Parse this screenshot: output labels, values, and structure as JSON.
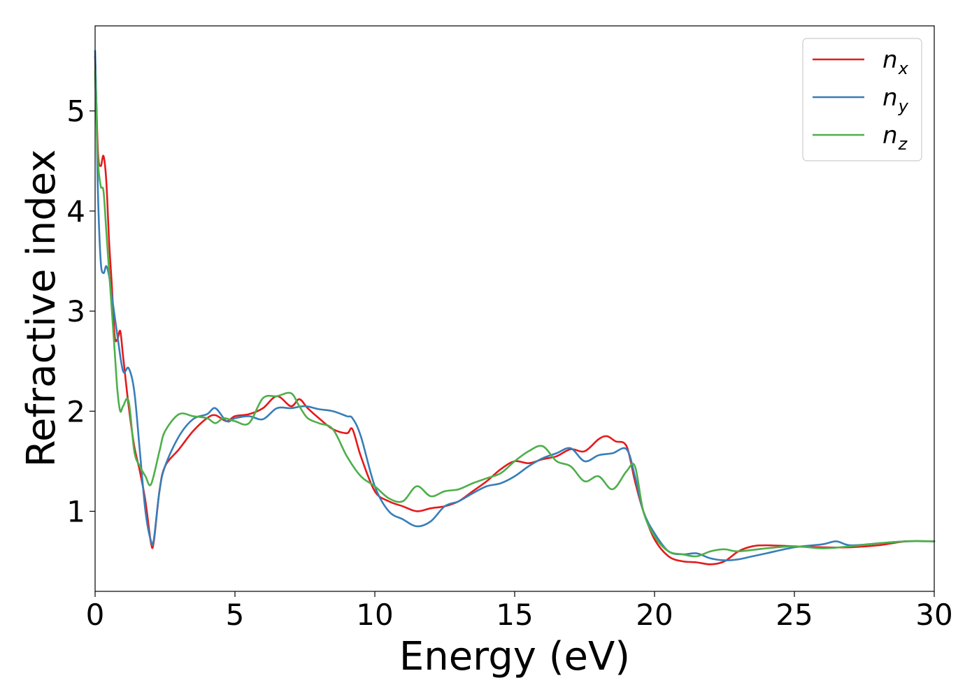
{
  "chart_data": {
    "type": "line",
    "title": "",
    "xlabel": "Energy (eV)",
    "ylabel": "Refractive index",
    "xlim": [
      0,
      30
    ],
    "ylim": [
      0.2,
      5.85
    ],
    "xticks": [
      0,
      5,
      10,
      15,
      20,
      25,
      30
    ],
    "yticks": [
      1,
      2,
      3,
      4,
      5
    ],
    "grid": false,
    "legend": {
      "placement": "top-right"
    },
    "series": [
      {
        "name": "n_x",
        "label_base": "n",
        "label_sub": "x",
        "color": "#e41a1c",
        "x": [
          0,
          0.1,
          0.2,
          0.3,
          0.4,
          0.5,
          0.6,
          0.7,
          0.8,
          0.9,
          1.0,
          1.2,
          1.4,
          1.6,
          1.8,
          2.0,
          2.1,
          2.3,
          2.5,
          3.0,
          3.5,
          4.0,
          4.3,
          4.7,
          5.0,
          5.5,
          6.0,
          6.5,
          7.0,
          7.3,
          7.6,
          8.0,
          8.5,
          9.0,
          9.2,
          9.5,
          10.0,
          10.5,
          11.0,
          11.5,
          12.0,
          12.5,
          13.0,
          13.5,
          14.0,
          14.5,
          15.0,
          15.5,
          16.0,
          16.5,
          17.0,
          17.5,
          18.0,
          18.3,
          18.6,
          19.0,
          19.3,
          19.6,
          20.0,
          20.5,
          21.0,
          21.5,
          22.0,
          22.5,
          23.0,
          23.5,
          24.0,
          25.0,
          26.0,
          27.0,
          28.0,
          29.0,
          30.0
        ],
        "y": [
          5.55,
          4.6,
          4.45,
          4.55,
          4.3,
          3.7,
          3.25,
          2.75,
          2.72,
          2.8,
          2.55,
          2.05,
          1.65,
          1.4,
          1.1,
          0.68,
          0.7,
          1.2,
          1.45,
          1.62,
          1.8,
          1.93,
          1.96,
          1.9,
          1.95,
          1.97,
          2.03,
          2.15,
          2.05,
          2.12,
          2.03,
          1.93,
          1.82,
          1.78,
          1.82,
          1.55,
          1.2,
          1.1,
          1.05,
          1.0,
          1.03,
          1.05,
          1.1,
          1.2,
          1.3,
          1.42,
          1.5,
          1.48,
          1.52,
          1.55,
          1.62,
          1.6,
          1.72,
          1.75,
          1.7,
          1.65,
          1.3,
          1.0,
          0.72,
          0.55,
          0.5,
          0.49,
          0.47,
          0.5,
          0.6,
          0.65,
          0.66,
          0.65,
          0.64,
          0.64,
          0.66,
          0.7,
          0.7
        ]
      },
      {
        "name": "n_y",
        "label_base": "n",
        "label_sub": "y",
        "color": "#377eb8",
        "x": [
          0,
          0.05,
          0.1,
          0.2,
          0.3,
          0.4,
          0.5,
          0.6,
          0.8,
          1.0,
          1.2,
          1.4,
          1.6,
          1.8,
          2.0,
          2.1,
          2.3,
          2.5,
          3.0,
          3.5,
          4.0,
          4.3,
          4.7,
          5.0,
          5.5,
          6.0,
          6.5,
          7.0,
          7.5,
          8.0,
          8.5,
          9.0,
          9.2,
          9.5,
          10.0,
          10.5,
          11.0,
          11.5,
          12.0,
          12.5,
          13.0,
          13.5,
          14.0,
          14.5,
          15.0,
          15.5,
          16.0,
          16.5,
          17.0,
          17.5,
          18.0,
          18.5,
          19.0,
          19.3,
          19.6,
          20.0,
          20.5,
          21.0,
          21.5,
          22.0,
          22.5,
          23.0,
          23.5,
          24.0,
          25.0,
          26.0,
          26.5,
          27.0,
          28.0,
          29.0,
          30.0
        ],
        "y": [
          5.6,
          5.0,
          4.2,
          3.5,
          3.38,
          3.45,
          3.35,
          3.15,
          2.75,
          2.4,
          2.43,
          2.2,
          1.6,
          1.0,
          0.7,
          0.72,
          1.2,
          1.45,
          1.75,
          1.92,
          1.97,
          2.03,
          1.9,
          1.93,
          1.95,
          1.92,
          2.03,
          2.03,
          2.05,
          2.02,
          2.0,
          1.95,
          1.93,
          1.75,
          1.25,
          1.0,
          0.92,
          0.85,
          0.9,
          1.05,
          1.1,
          1.18,
          1.25,
          1.28,
          1.35,
          1.45,
          1.53,
          1.58,
          1.63,
          1.5,
          1.56,
          1.58,
          1.62,
          1.35,
          1.0,
          0.78,
          0.6,
          0.57,
          0.58,
          0.53,
          0.51,
          0.52,
          0.55,
          0.58,
          0.64,
          0.67,
          0.7,
          0.66,
          0.68,
          0.7,
          0.7
        ]
      },
      {
        "name": "n_z",
        "label_base": "n",
        "label_sub": "z",
        "color": "#4daf4a",
        "x": [
          0,
          0.05,
          0.1,
          0.2,
          0.3,
          0.4,
          0.5,
          0.6,
          0.7,
          0.8,
          0.9,
          1.0,
          1.2,
          1.4,
          1.6,
          1.8,
          2.0,
          2.3,
          2.5,
          3.0,
          3.5,
          4.0,
          4.3,
          4.6,
          5.0,
          5.5,
          6.0,
          6.5,
          7.0,
          7.3,
          7.6,
          8.0,
          8.5,
          9.0,
          9.5,
          10.0,
          10.5,
          11.0,
          11.5,
          12.0,
          12.5,
          13.0,
          13.5,
          14.0,
          14.5,
          15.0,
          15.5,
          16.0,
          16.5,
          17.0,
          17.5,
          18.0,
          18.5,
          19.0,
          19.3,
          19.6,
          20.0,
          20.5,
          21.0,
          21.5,
          22.0,
          22.5,
          23.0,
          24.0,
          25.0,
          26.0,
          27.0,
          28.0,
          29.0,
          30.0
        ],
        "y": [
          5.4,
          4.9,
          4.5,
          4.25,
          4.2,
          3.8,
          3.4,
          3.0,
          2.6,
          2.2,
          2.0,
          2.05,
          2.1,
          1.6,
          1.45,
          1.35,
          1.27,
          1.6,
          1.8,
          1.97,
          1.95,
          1.93,
          1.88,
          1.93,
          1.9,
          1.88,
          2.13,
          2.15,
          2.18,
          2.05,
          1.93,
          1.88,
          1.82,
          1.55,
          1.35,
          1.25,
          1.13,
          1.1,
          1.25,
          1.15,
          1.2,
          1.22,
          1.28,
          1.33,
          1.38,
          1.5,
          1.6,
          1.65,
          1.5,
          1.45,
          1.3,
          1.35,
          1.22,
          1.4,
          1.45,
          1.0,
          0.75,
          0.6,
          0.57,
          0.55,
          0.6,
          0.62,
          0.6,
          0.63,
          0.65,
          0.63,
          0.65,
          0.68,
          0.7,
          0.7
        ]
      }
    ]
  }
}
